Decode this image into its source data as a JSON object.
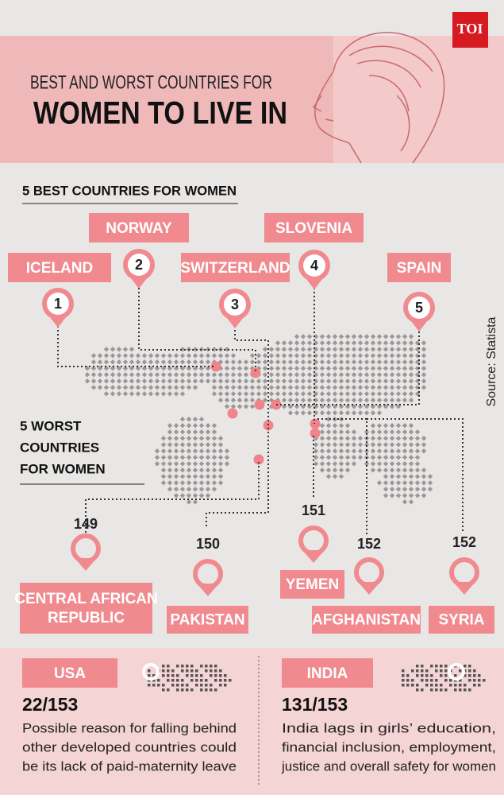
{
  "header": {
    "logo": "TOI",
    "title_line1": "BEST AND WORST COUNTRIES FOR",
    "title_line2": "WOMEN TO LIVE  IN"
  },
  "best": {
    "heading": "5 BEST COUNTRIES FOR WOMEN",
    "countries": [
      {
        "name": "ICELAND",
        "rank": 1
      },
      {
        "name": "NORWAY",
        "rank": 2
      },
      {
        "name": "SWITZERLAND",
        "rank": 3
      },
      {
        "name": "SLOVENIA",
        "rank": 4
      },
      {
        "name": "SPAIN",
        "rank": 5
      }
    ]
  },
  "worst": {
    "heading": [
      "5 WORST",
      "COUNTRIES",
      "FOR WOMEN"
    ],
    "countries": [
      {
        "name": [
          "CENTRAL AFRICAN",
          "REPUBLIC"
        ],
        "rank": 149
      },
      {
        "name": [
          "PAKISTAN"
        ],
        "rank": 150
      },
      {
        "name": [
          "YEMEN"
        ],
        "rank": 151
      },
      {
        "name": [
          "AFGHANISTAN"
        ],
        "rank": 152
      },
      {
        "name": [
          "SYRIA"
        ],
        "rank": 152
      }
    ]
  },
  "source": "Source: Statista",
  "panels": [
    {
      "country": "USA",
      "rank": "22/153",
      "text": [
        "Possible reason for falling behind",
        "other developed countries could",
        "be its lack of paid-maternity leave"
      ]
    },
    {
      "country": "INDIA",
      "rank": "131/153",
      "text": [
        "India lags in girls’ education,",
        "financial inclusion, employment,",
        "justice and overall safety for women"
      ]
    }
  ]
}
